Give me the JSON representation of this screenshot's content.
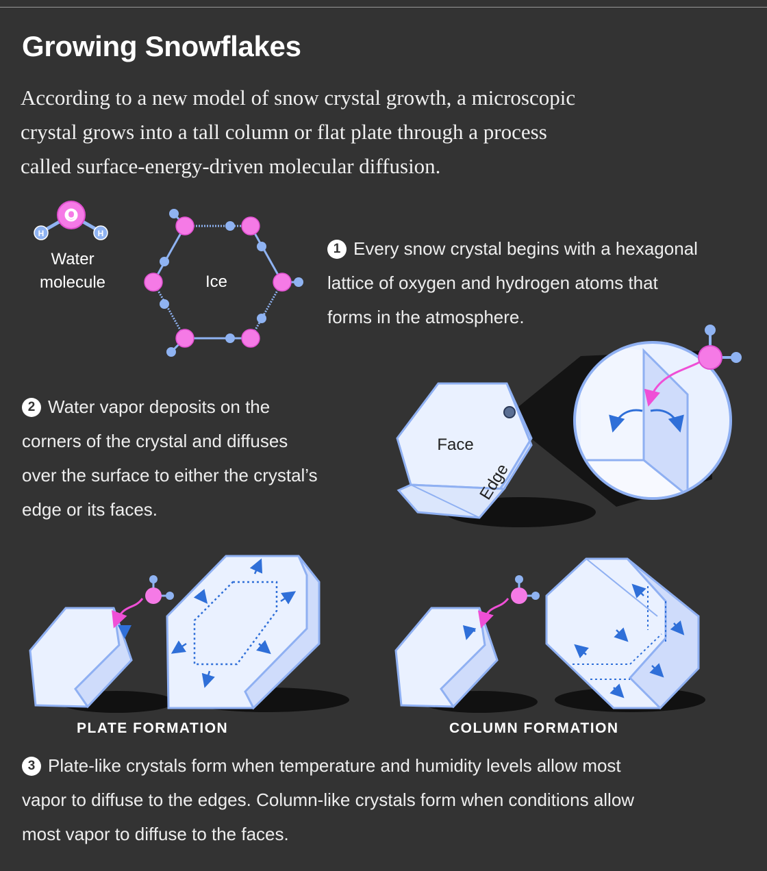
{
  "title": "Growing Snowflakes",
  "intro": [
    "According to a new model of snow crystal growth,  a microscopic",
    "crystal grows into a tall column or flat plate through a process",
    "called surface-energy-driven molecular diffusion."
  ],
  "molecule": {
    "oxygen": "O",
    "hydrogen_left": "H",
    "hydrogen_right": "H",
    "label_line1": "Water",
    "label_line2": "molecule"
  },
  "ice_label": "Ice",
  "step1": {
    "number": "1",
    "lines": [
      "Every snow crystal begins with a hexagonal",
      "lattice of oxygen and hydrogen atoms that",
      "forms in the atmosphere."
    ]
  },
  "step2": {
    "number": "2",
    "lines": [
      "Water vapor deposits on the",
      "corners of the crystal and diffuses",
      "over the surface to either the crystal’s",
      "edge or its faces."
    ]
  },
  "crystal_labels": {
    "face": "Face",
    "edge": "Edge"
  },
  "plate_caption": "PLATE FORMATION",
  "column_caption": "COLUMN FORMATION",
  "step3": {
    "number": "3",
    "lines": [
      "Plate-like crystals form when temperature and humidity levels allow most",
      "vapor to diffuse to the edges. Column-like crystals form when conditions allow",
      "most vapor to diffuse to the faces."
    ]
  },
  "colors": {
    "background": "#333333",
    "oxygen": "#f57ae6",
    "hydrogen": "#8fb3f2",
    "crystal_fill": "#eaf1ff",
    "crystal_side": "#cfdcfb",
    "crystal_stroke": "#8fb0f2",
    "arrow_blue": "#2f6fd8",
    "arrow_pink": "#ef4fd6"
  },
  "icons": [
    "water-molecule-icon",
    "ice-lattice-icon",
    "vapor-molecule-icon",
    "diffusion-arrow-icon"
  ]
}
